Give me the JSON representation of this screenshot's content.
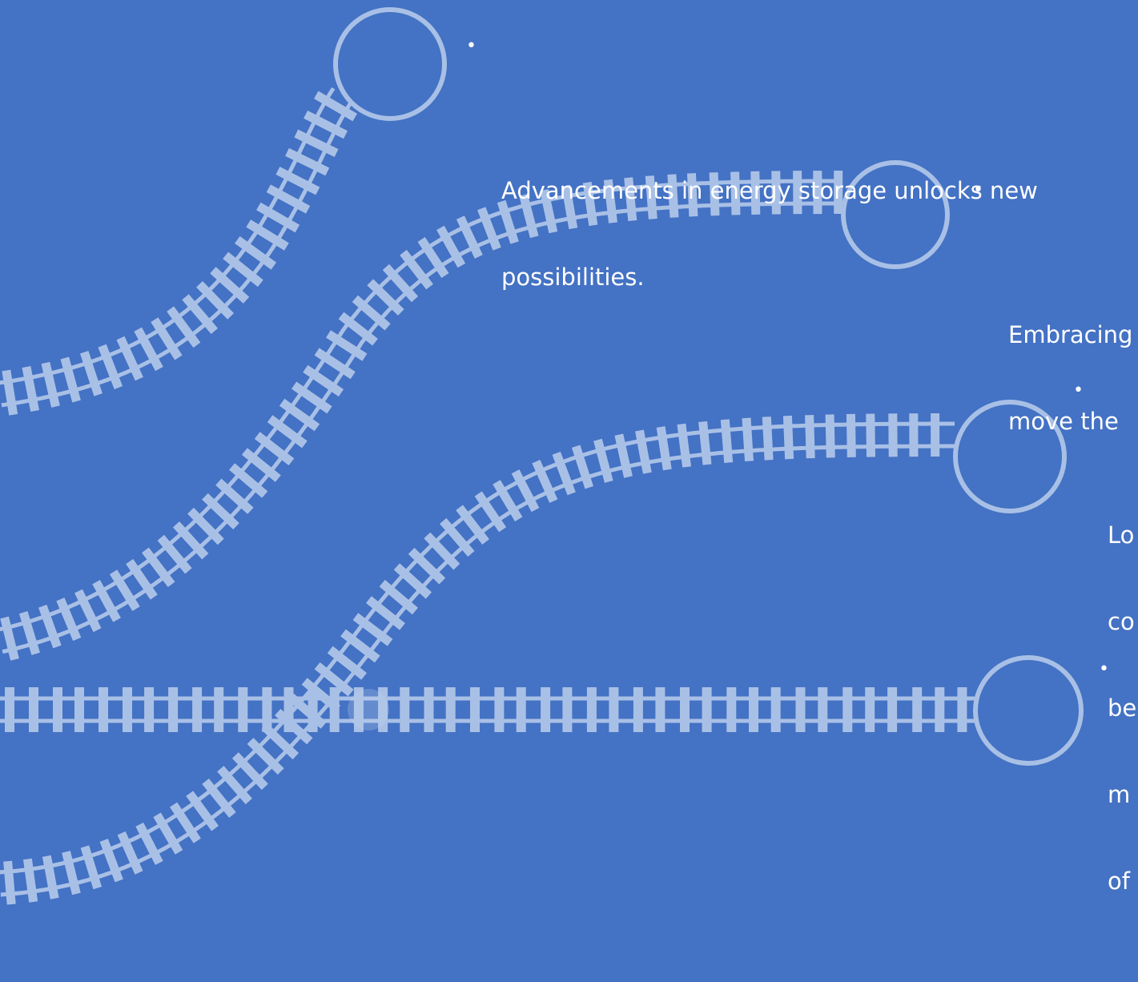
{
  "colors": {
    "background": "#4472c4",
    "track": "#a9c0e6",
    "track_crossing": "#c9d8f0",
    "text": "#ffffff"
  },
  "bullet_glyph": "•",
  "bullets": [
    {
      "lines": [
        "Advancements in energy storage unlocks new",
        "possibilities."
      ]
    },
    {
      "lines": [
        "Embracing",
        "move the"
      ]
    },
    {
      "lines": [
        "Lo",
        "co",
        "be",
        "m",
        "of"
      ]
    },
    {
      "lines": [
        ""
      ]
    }
  ]
}
